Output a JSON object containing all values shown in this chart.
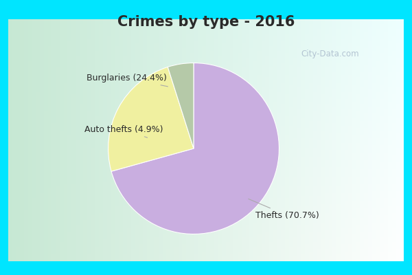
{
  "title": "Crimes by type - 2016",
  "slices": [
    {
      "label": "Thefts",
      "pct": 70.7,
      "color": "#c9aee0"
    },
    {
      "label": "Burglaries",
      "pct": 24.4,
      "color": "#f0f0a0"
    },
    {
      "label": "Auto thefts",
      "pct": 4.9,
      "color": "#b5c9a8"
    }
  ],
  "outer_bg": "#00e5ff",
  "inner_bg_top_left": "#c8e8d8",
  "inner_bg_center": "#e8f4ee",
  "title_fontsize": 15,
  "label_fontsize": 9,
  "watermark": "City-Data.com",
  "title_color": "#2a2a2a",
  "label_color": "#2a2a2a",
  "border_width": 8
}
